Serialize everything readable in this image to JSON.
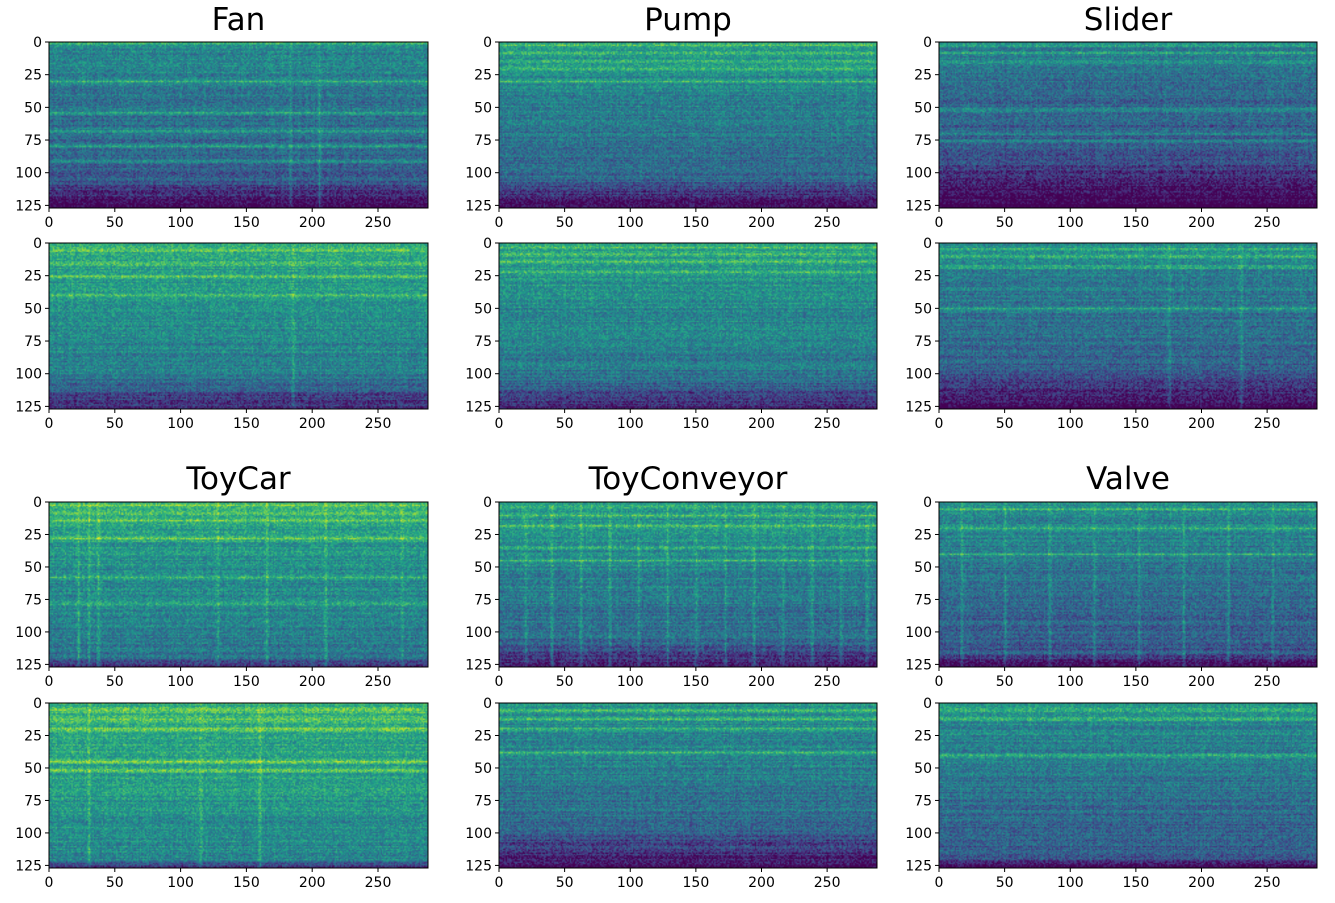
{
  "chart_data": [
    {
      "type": "heatmap",
      "title": "Fan",
      "colormap": "viridis",
      "xlim": [
        0,
        288
      ],
      "ylim": [
        127,
        0
      ],
      "xticks": [
        "0",
        "50",
        "100",
        "150",
        "200",
        "250"
      ],
      "yticks": [
        "0",
        "25",
        "50",
        "75",
        "100",
        "125"
      ],
      "panels": [
        {
          "row": "top",
          "intensity_mean": 0.36,
          "bright_rows": [
            0,
            30,
            54,
            68,
            80,
            92
          ],
          "bright_columns": [
            183,
            205
          ],
          "dark_bottom_rows": [
            110,
            127
          ]
        },
        {
          "row": "bottom",
          "intensity_mean": 0.48,
          "bright_rows": [
            5,
            15,
            25,
            40
          ],
          "bright_columns": [
            185
          ],
          "dark_bottom_rows": [
            105,
            127
          ]
        }
      ]
    },
    {
      "type": "heatmap",
      "title": "Pump",
      "colormap": "viridis",
      "xlim": [
        0,
        288
      ],
      "ylim": [
        127,
        0
      ],
      "xticks": [
        "0",
        "50",
        "100",
        "150",
        "200",
        "250"
      ],
      "yticks": [
        "0",
        "25",
        "50",
        "75",
        "100",
        "125"
      ],
      "panels": [
        {
          "row": "top",
          "intensity_mean": 0.4,
          "bright_rows": [
            2,
            8,
            14,
            20,
            30
          ],
          "bright_columns": [],
          "dark_bottom_rows": [
            108,
            127
          ]
        },
        {
          "row": "bottom",
          "intensity_mean": 0.45,
          "bright_rows": [
            3,
            8,
            14,
            22
          ],
          "bright_columns": [],
          "dark_bottom_rows": [
            108,
            127
          ]
        }
      ]
    },
    {
      "type": "heatmap",
      "title": "Slider",
      "colormap": "viridis",
      "xlim": [
        0,
        288
      ],
      "ylim": [
        127,
        0
      ],
      "xticks": [
        "0",
        "50",
        "100",
        "150",
        "200",
        "250"
      ],
      "yticks": [
        "0",
        "25",
        "50",
        "75",
        "100",
        "125"
      ],
      "panels": [
        {
          "row": "top",
          "intensity_mean": 0.3,
          "bright_rows": [
            2,
            8,
            15,
            52,
            70,
            76
          ],
          "bright_columns": [],
          "dark_bottom_rows": [
            95,
            127
          ]
        },
        {
          "row": "bottom",
          "intensity_mean": 0.36,
          "bright_rows": [
            4,
            10,
            18,
            50
          ],
          "bright_columns": [
            175,
            230
          ],
          "dark_bottom_rows": [
            100,
            127
          ]
        }
      ]
    },
    {
      "type": "heatmap",
      "title": "ToyCar",
      "colormap": "viridis",
      "xlim": [
        0,
        288
      ],
      "ylim": [
        127,
        0
      ],
      "xticks": [
        "0",
        "50",
        "100",
        "150",
        "200",
        "250"
      ],
      "yticks": [
        "0",
        "25",
        "50",
        "75",
        "100",
        "125"
      ],
      "panels": [
        {
          "row": "top",
          "intensity_mean": 0.48,
          "bright_rows": [
            2,
            8,
            14,
            28,
            58,
            78
          ],
          "bright_columns": [
            22,
            30,
            37,
            128,
            165,
            210,
            268
          ],
          "dark_bottom_rows": [
            120,
            127
          ]
        },
        {
          "row": "bottom",
          "intensity_mean": 0.54,
          "bright_rows": [
            5,
            12,
            20,
            45,
            52
          ],
          "bright_columns": [
            30,
            115,
            160
          ],
          "dark_bottom_rows": [
            122,
            127
          ]
        }
      ]
    },
    {
      "type": "heatmap",
      "title": "ToyConveyor",
      "colormap": "viridis",
      "xlim": [
        0,
        288
      ],
      "ylim": [
        127,
        0
      ],
      "xticks": [
        "0",
        "50",
        "100",
        "150",
        "200",
        "250"
      ],
      "yticks": [
        "0",
        "25",
        "50",
        "75",
        "100",
        "125"
      ],
      "panels": [
        {
          "row": "top",
          "intensity_mean": 0.42,
          "bright_rows": [
            3,
            10,
            18,
            35,
            45
          ],
          "bright_columns": [
            20,
            40,
            62,
            84,
            106,
            128,
            150,
            172,
            194,
            216,
            238,
            260,
            280
          ],
          "dark_bottom_rows": [
            110,
            127
          ]
        },
        {
          "row": "bottom",
          "intensity_mean": 0.4,
          "bright_rows": [
            5,
            12,
            20,
            38
          ],
          "bright_columns": [],
          "dark_bottom_rows": [
            100,
            127
          ]
        }
      ]
    },
    {
      "type": "heatmap",
      "title": "Valve",
      "colormap": "viridis",
      "xlim": [
        0,
        288
      ],
      "ylim": [
        127,
        0
      ],
      "xticks": [
        "0",
        "50",
        "100",
        "150",
        "200",
        "250"
      ],
      "yticks": [
        "0",
        "25",
        "50",
        "75",
        "100",
        "125"
      ],
      "panels": [
        {
          "row": "top",
          "intensity_mean": 0.36,
          "bright_rows": [
            5,
            20,
            40
          ],
          "bright_columns": [
            17,
            50,
            84,
            118,
            152,
            186,
            220,
            254
          ],
          "dark_bottom_rows": [
            118,
            127
          ]
        },
        {
          "row": "bottom",
          "intensity_mean": 0.38,
          "bright_rows": [
            5,
            12,
            40
          ],
          "bright_columns": [],
          "dark_bottom_rows": [
            120,
            127
          ]
        }
      ]
    }
  ]
}
